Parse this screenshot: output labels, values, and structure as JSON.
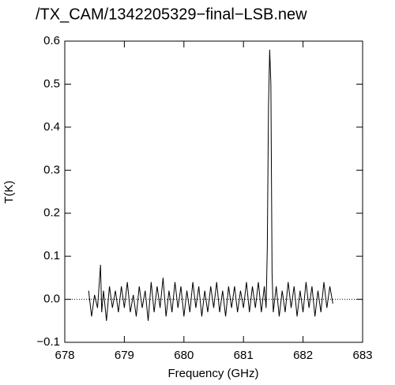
{
  "chart_data": {
    "type": "line",
    "title": "/TX_CAM/1342205329−final−LSB.new",
    "x_label": "Frequency (GHz)",
    "y_label": "T(K)",
    "color": "#000000",
    "zero_line": true,
    "xlim": [
      678,
      683
    ],
    "xticks": [
      678,
      679,
      680,
      681,
      682,
      683
    ],
    "ylim": [
      -0.1,
      0.6
    ],
    "yticks": [
      {
        "value": -0.1,
        "label": "−0.1"
      },
      {
        "value": 0,
        "label": "0.0"
      },
      0.1,
      0.2,
      0.3,
      0.4,
      0.5,
      0.6
    ],
    "x": [
      678.4,
      678.45,
      678.5,
      678.55,
      678.6,
      678.62,
      678.65,
      678.7,
      678.75,
      678.8,
      678.85,
      678.9,
      678.95,
      679.0,
      679.05,
      679.1,
      679.15,
      679.2,
      679.25,
      679.3,
      679.35,
      679.4,
      679.45,
      679.5,
      679.55,
      679.6,
      679.65,
      679.7,
      679.75,
      679.8,
      679.85,
      679.9,
      679.95,
      680.0,
      680.05,
      680.1,
      680.15,
      680.2,
      680.25,
      680.3,
      680.35,
      680.4,
      680.45,
      680.5,
      680.55,
      680.6,
      680.65,
      680.7,
      680.75,
      680.8,
      680.85,
      680.9,
      680.95,
      681.0,
      681.05,
      681.1,
      681.15,
      681.2,
      681.25,
      681.3,
      681.35,
      681.38,
      681.4,
      681.42,
      681.44,
      681.46,
      681.48,
      681.5,
      681.55,
      681.6,
      681.65,
      681.7,
      681.75,
      681.8,
      681.85,
      681.9,
      681.95,
      682.0,
      682.05,
      682.1,
      682.15,
      682.2,
      682.25,
      682.3,
      682.35,
      682.4,
      682.45,
      682.5
    ],
    "values": [
      0.02,
      -0.04,
      0.01,
      -0.02,
      0.08,
      -0.03,
      0.02,
      -0.05,
      0.03,
      -0.02,
      0.02,
      -0.03,
      0.03,
      -0.02,
      0.04,
      -0.03,
      0.01,
      -0.04,
      0.03,
      -0.02,
      0.02,
      -0.05,
      0.04,
      -0.03,
      0.03,
      -0.02,
      0.05,
      -0.04,
      0.02,
      -0.03,
      0.04,
      -0.02,
      0.03,
      -0.04,
      0.02,
      -0.03,
      0.04,
      -0.02,
      0.03,
      -0.04,
      0.02,
      -0.03,
      0.03,
      -0.02,
      0.04,
      -0.03,
      0.02,
      -0.04,
      0.03,
      -0.02,
      0.03,
      -0.03,
      0.02,
      -0.02,
      0.04,
      -0.03,
      0.03,
      -0.02,
      0.04,
      -0.03,
      0.03,
      -0.02,
      0.12,
      0.45,
      0.58,
      0.5,
      0.06,
      -0.03,
      0.03,
      -0.04,
      0.02,
      -0.03,
      0.04,
      -0.02,
      0.03,
      -0.04,
      0.02,
      -0.03,
      0.04,
      -0.02,
      0.03,
      -0.04,
      0.02,
      -0.03,
      0.04,
      -0.02,
      0.03,
      -0.01
    ]
  }
}
